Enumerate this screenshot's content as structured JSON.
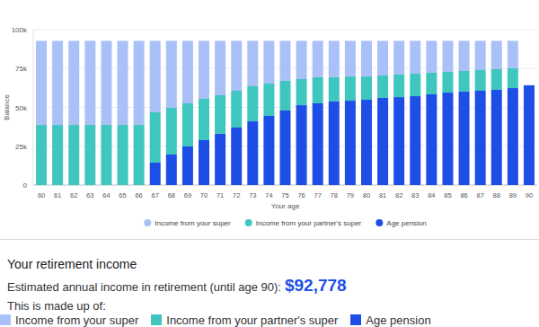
{
  "chart_data": {
    "type": "bar",
    "stacked": true,
    "grid": true,
    "legend": "bottom",
    "x_label": "Your age",
    "y_label": "Balance",
    "categories": [
      "60",
      "61",
      "62",
      "63",
      "64",
      "65",
      "66",
      "67",
      "68",
      "69",
      "70",
      "71",
      "72",
      "73",
      "74",
      "75",
      "76",
      "77",
      "78",
      "79",
      "80",
      "81",
      "82",
      "83",
      "84",
      "85",
      "86",
      "87",
      "88",
      "89",
      "90"
    ],
    "ylim": [
      0,
      100000
    ],
    "yticks": [
      {
        "value": 0,
        "label": "0"
      },
      {
        "value": 25000,
        "label": "25k"
      },
      {
        "value": 50000,
        "label": "50k"
      },
      {
        "value": 75000,
        "label": "75k"
      },
      {
        "value": 100000,
        "label": "100k"
      }
    ],
    "series": [
      {
        "name": "Income from your super",
        "color": "#a9c1f7",
        "values": [
          54100,
          54100,
          54100,
          54100,
          54100,
          54100,
          54100,
          46000,
          43100,
          40200,
          37300,
          35000,
          32100,
          29200,
          27500,
          25700,
          24600,
          23400,
          23400,
          22900,
          22900,
          22300,
          21700,
          21100,
          20500,
          20000,
          19400,
          18800,
          18200,
          17700,
          0
        ]
      },
      {
        "name": "Income from your partner's super",
        "color": "#3ec6bf",
        "values": [
          38700,
          38700,
          38700,
          38700,
          38700,
          38700,
          38700,
          32300,
          30000,
          27700,
          26600,
          24800,
          23700,
          22600,
          20800,
          19100,
          16800,
          16800,
          15600,
          15600,
          15000,
          14400,
          14500,
          14500,
          13900,
          13300,
          13300,
          13300,
          13300,
          12700,
          0
        ]
      },
      {
        "name": "Age pension",
        "color": "#1d4ee6",
        "values": [
          0,
          0,
          0,
          0,
          0,
          0,
          0,
          14500,
          19700,
          24900,
          28900,
          33000,
          37000,
          41000,
          44500,
          48000,
          51400,
          52600,
          53800,
          54300,
          54900,
          56100,
          56600,
          57200,
          58400,
          59500,
          60100,
          60700,
          61300,
          62400,
          64200
        ]
      }
    ]
  },
  "summary": {
    "heading": "Your retirement income",
    "estimate_label": "Estimated annual income in retirement (until age 90):",
    "estimate_value": "$92,778",
    "made_up_of": "This is made up of:"
  }
}
